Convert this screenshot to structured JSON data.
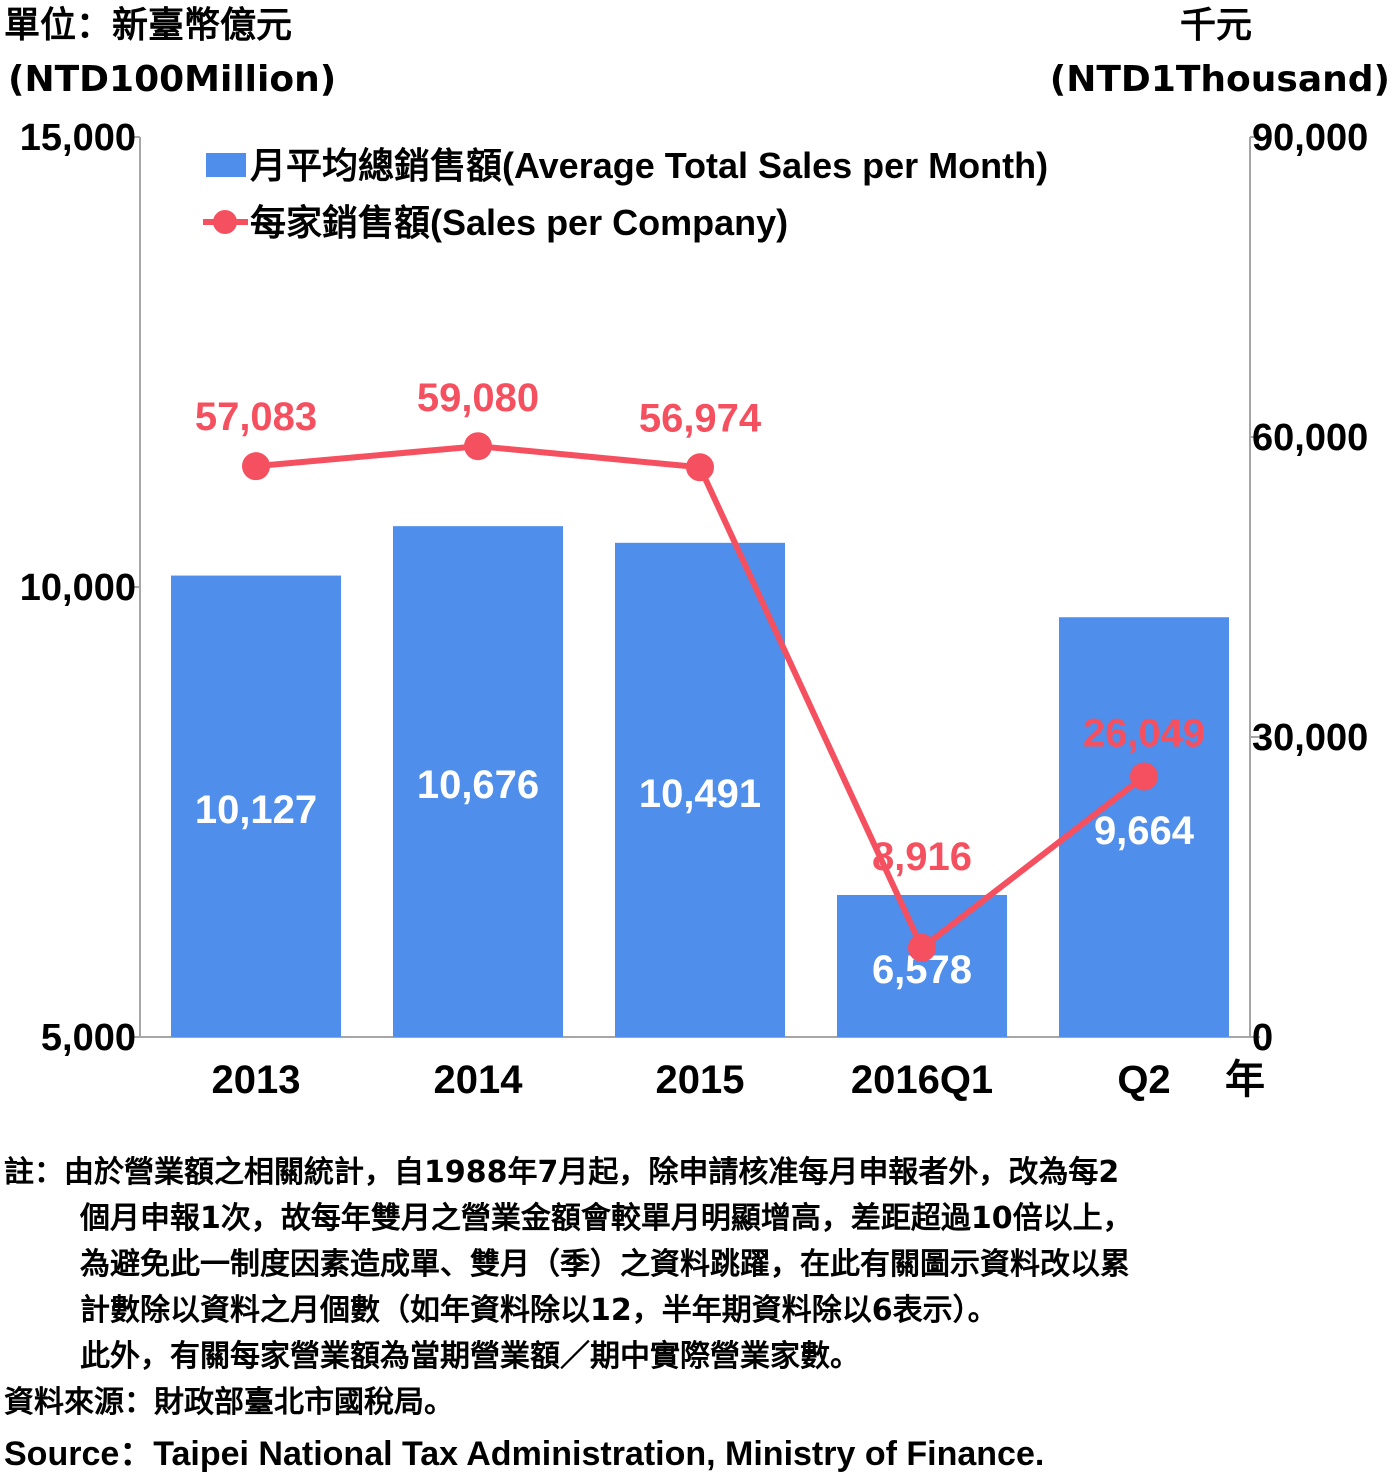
{
  "units": {
    "left_zh": "單位：新臺幣億元",
    "left_en": "(NTD100Million)",
    "right_zh": "千元",
    "right_en": "(NTD1Thousand)"
  },
  "chart_data": {
    "type": "bar+line",
    "categories": [
      "2013",
      "2014",
      "2015",
      "2016Q1",
      "Q2"
    ],
    "x_unit": "年",
    "left_axis": {
      "ylim": [
        5000,
        15000
      ],
      "ticks": [
        "5,000",
        "10,000",
        "15,000"
      ]
    },
    "right_axis": {
      "ylim": [
        0,
        90000
      ],
      "ticks": [
        "0",
        "30,000",
        "60,000",
        "90,000"
      ]
    },
    "series": [
      {
        "name": "月平均總銷售額(Average Total Sales per Month)",
        "type": "bar",
        "axis": "left",
        "color": "#4f8eea",
        "values": [
          10127,
          10676,
          10491,
          6578,
          9664
        ],
        "labels": [
          "10,127",
          "10,676",
          "10,491",
          "6,578",
          "9,664"
        ]
      },
      {
        "name": "每家銷售額(Sales per Company)",
        "type": "line",
        "axis": "right",
        "color": "#f5505f",
        "values": [
          57083,
          59080,
          56974,
          8916,
          26049
        ],
        "labels": [
          "57,083",
          "59,080",
          "56,974",
          "8,916",
          "26,049"
        ]
      }
    ],
    "legend_position": "top-left",
    "grid": false
  },
  "notes": {
    "line1": "註：由於營業額之相關統計，自1988年7月起，除申請核准每月申報者外，改為每2",
    "line2": "個月申報1次，故每年雙月之營業金額會較單月明顯增高，差距超過10倍以上，",
    "line3": "為避免此一制度因素造成單、雙月（季）之資料跳躍，在此有關圖示資料改以累",
    "line4": "計數除以資料之月個數（如年資料除以12，半年期資料除以6表示）。",
    "line5": "此外，有關每家營業額為當期營業額／期中實際營業家數。",
    "source_zh": "資料來源：財政部臺北市國稅局。",
    "source_en": "Source：Taipei National Tax Administration, Ministry of Finance."
  }
}
